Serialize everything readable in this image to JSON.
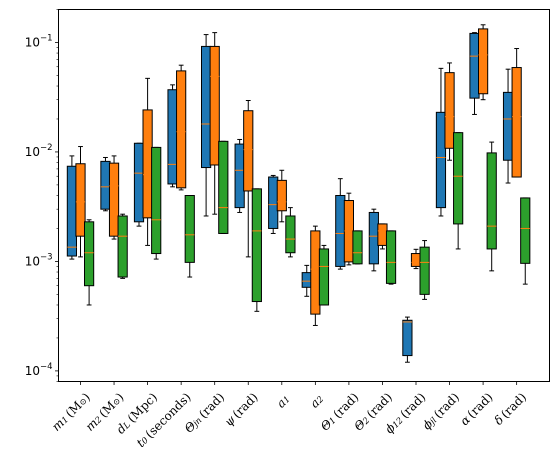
{
  "chart_data": {
    "type": "box",
    "title": "",
    "xlabel": "",
    "ylabel": "",
    "yscale": "log",
    "ylim": [
      8e-05,
      0.2
    ],
    "yticks": [
      {
        "value": 0.0001,
        "base": "10",
        "exp": "−4"
      },
      {
        "value": 0.001,
        "base": "10",
        "exp": "−3"
      },
      {
        "value": 0.01,
        "base": "10",
        "exp": "−2"
      },
      {
        "value": 0.1,
        "base": "10",
        "exp": "−1"
      }
    ],
    "categories": [
      {
        "main": "m",
        "sub": "1",
        "unit": "(M",
        "unitsub": "⊙",
        "tail": ")"
      },
      {
        "main": "m",
        "sub": "2",
        "unit": "(M",
        "unitsub": "⊙",
        "tail": ")"
      },
      {
        "main": "d",
        "sub": "L",
        "unit": "(Mpc)",
        "unitsub": "",
        "tail": ""
      },
      {
        "main": "t",
        "sub": "0",
        "unit": "(seconds)",
        "unitsub": "",
        "tail": ""
      },
      {
        "main": "Θ",
        "sub": "jn",
        "unit": "(rad)",
        "unitsub": "",
        "tail": ""
      },
      {
        "main": "ψ",
        "sub": "",
        "unit": "(rad)",
        "unitsub": "",
        "tail": ""
      },
      {
        "main": "a",
        "sub": "1",
        "unit": "",
        "unitsub": "",
        "tail": ""
      },
      {
        "main": "a",
        "sub": "2",
        "unit": "",
        "unitsub": "",
        "tail": ""
      },
      {
        "main": "Θ",
        "sub": "1",
        "unit": "(rad)",
        "unitsub": "",
        "tail": ""
      },
      {
        "main": "Θ",
        "sub": "2",
        "unit": "(rad)",
        "unitsub": "",
        "tail": ""
      },
      {
        "main": "ϕ",
        "sub": "12",
        "unit": "(rad)",
        "unitsub": "",
        "tail": ""
      },
      {
        "main": "ϕ",
        "sub": "jl",
        "unit": "(rad)",
        "unitsub": "",
        "tail": ""
      },
      {
        "main": "α",
        "sub": "",
        "unit": "(rad)",
        "unitsub": "",
        "tail": ""
      },
      {
        "main": "δ",
        "sub": "",
        "unit": "(rad)",
        "unitsub": "",
        "tail": ""
      }
    ],
    "series_colors": [
      "#1f77b4",
      "#ff7f0e",
      "#2ca02c"
    ],
    "median_color": "#ff7f0e",
    "series": [
      {
        "boxes": [
          {
            "whislo": 0.00105,
            "q1": 0.00112,
            "med": 0.00135,
            "q3": 0.0074,
            "whishi": 0.0092
          },
          {
            "whislo": 0.0029,
            "q1": 0.003,
            "med": 0.0048,
            "q3": 0.0082,
            "whishi": 0.0089
          },
          {
            "whislo": 0.0021,
            "q1": 0.0023,
            "med": 0.0064,
            "q3": 0.012,
            "whishi": 0.012
          },
          {
            "whislo": 0.0048,
            "q1": 0.0051,
            "med": 0.0077,
            "q3": 0.037,
            "whishi": 0.041
          },
          {
            "whislo": 0.0026,
            "q1": 0.0072,
            "med": 0.018,
            "q3": 0.092,
            "whishi": 0.118
          },
          {
            "whislo": 0.0028,
            "q1": 0.0031,
            "med": 0.0068,
            "q3": 0.0118,
            "whishi": 0.013
          },
          {
            "whislo": 0.0018,
            "q1": 0.002,
            "med": 0.0033,
            "q3": 0.0059,
            "whishi": 0.0061
          },
          {
            "whislo": 0.00048,
            "q1": 0.00058,
            "med": 0.00066,
            "q3": 0.00079,
            "whishi": 0.00092
          },
          {
            "whislo": 0.00085,
            "q1": 0.0009,
            "med": 0.0018,
            "q3": 0.004,
            "whishi": 0.0057
          },
          {
            "whislo": 0.00082,
            "q1": 0.00095,
            "med": 0.0017,
            "q3": 0.0028,
            "whishi": 0.003
          },
          {
            "whislo": 0.00012,
            "q1": 0.000138,
            "med": 0.00028,
            "q3": 0.00029,
            "whishi": 0.00031
          },
          {
            "whislo": 0.0026,
            "q1": 0.0031,
            "med": 0.0089,
            "q3": 0.023,
            "whishi": 0.058
          },
          {
            "whislo": 0.022,
            "q1": 0.031,
            "med": 0.075,
            "q3": 0.121,
            "whishi": 0.123
          },
          {
            "whislo": 0.0052,
            "q1": 0.0084,
            "med": 0.02,
            "q3": 0.035,
            "whishi": 0.057
          }
        ]
      },
      {
        "boxes": [
          {
            "whislo": 0.0011,
            "q1": 0.0017,
            "med": 0.0035,
            "q3": 0.0078,
            "whishi": 0.0112
          },
          {
            "whislo": 0.0016,
            "q1": 0.0017,
            "med": 0.0049,
            "q3": 0.0079,
            "whishi": 0.0092
          },
          {
            "whislo": 0.0014,
            "q1": 0.0025,
            "med": 0.0062,
            "q3": 0.0242,
            "whishi": 0.047
          },
          {
            "whislo": 0.0045,
            "q1": 0.0047,
            "med": 0.0153,
            "q3": 0.055,
            "whishi": 0.062
          },
          {
            "whislo": 0.0027,
            "q1": 0.0076,
            "med": 0.049,
            "q3": 0.092,
            "whishi": 0.123
          },
          {
            "whislo": 0.0011,
            "q1": 0.0044,
            "med": 0.0105,
            "q3": 0.0238,
            "whishi": 0.0295
          },
          {
            "whislo": 0.0023,
            "q1": 0.0029,
            "med": 0.0035,
            "q3": 0.0055,
            "whishi": 0.0068
          },
          {
            "whislo": 0.00026,
            "q1": 0.00033,
            "med": 0.00085,
            "q3": 0.0019,
            "whishi": 0.0021
          },
          {
            "whislo": 0.00093,
            "q1": 0.00099,
            "med": 0.0019,
            "q3": 0.0036,
            "whishi": 0.0042
          },
          {
            "whislo": 0.0013,
            "q1": 0.0014,
            "med": 0.0019,
            "q3": 0.0022,
            "whishi": 0.0022
          },
          {
            "whislo": 0.00086,
            "q1": 0.0009,
            "med": 0.00098,
            "q3": 0.00118,
            "whishi": 0.00129
          },
          {
            "whislo": 0.0084,
            "q1": 0.0108,
            "med": 0.021,
            "q3": 0.053,
            "whishi": 0.065
          },
          {
            "whislo": 0.03,
            "q1": 0.034,
            "med": 0.077,
            "q3": 0.133,
            "whishi": 0.145
          },
          {
            "whislo": 0.0059,
            "q1": 0.0059,
            "med": 0.021,
            "q3": 0.059,
            "whishi": 0.088
          }
        ]
      },
      {
        "boxes": [
          {
            "whislo": 0.0004,
            "q1": 0.0006,
            "med": 0.0012,
            "q3": 0.0023,
            "whishi": 0.0024
          },
          {
            "whislo": 0.0007,
            "q1": 0.00072,
            "med": 0.0017,
            "q3": 0.0026,
            "whishi": 0.0027
          },
          {
            "whislo": 0.00105,
            "q1": 0.00118,
            "med": 0.0024,
            "q3": 0.011,
            "whishi": 0.011
          },
          {
            "whislo": 0.00072,
            "q1": 0.00098,
            "med": 0.00175,
            "q3": 0.004,
            "whishi": 0.004
          },
          {
            "whislo": 0.0018,
            "q1": 0.0018,
            "med": 0.0031,
            "q3": 0.0125,
            "whishi": 0.0125
          },
          {
            "whislo": 0.00035,
            "q1": 0.00043,
            "med": 0.0019,
            "q3": 0.0046,
            "whishi": 0.0046
          },
          {
            "whislo": 0.0011,
            "q1": 0.0012,
            "med": 0.0016,
            "q3": 0.0026,
            "whishi": 0.0031
          },
          {
            "whislo": 0.0004,
            "q1": 0.0004,
            "med": 0.0009,
            "q3": 0.0013,
            "whishi": 0.0014
          },
          {
            "whislo": 0.00095,
            "q1": 0.00095,
            "med": 0.0012,
            "q3": 0.0019,
            "whishi": 0.0019
          },
          {
            "whislo": 0.00062,
            "q1": 0.00063,
            "med": 0.00098,
            "q3": 0.0019,
            "whishi": 0.0019
          },
          {
            "whislo": 0.00045,
            "q1": 0.0005,
            "med": 0.00098,
            "q3": 0.00135,
            "whishi": 0.00155
          },
          {
            "whislo": 0.0013,
            "q1": 0.0022,
            "med": 0.006,
            "q3": 0.015,
            "whishi": 0.015
          },
          {
            "whislo": 0.00082,
            "q1": 0.0013,
            "med": 0.0021,
            "q3": 0.0098,
            "whishi": 0.0123
          },
          {
            "whislo": 0.00062,
            "q1": 0.00096,
            "med": 0.002,
            "q3": 0.0038,
            "whishi": 0.0038
          }
        ]
      }
    ]
  }
}
